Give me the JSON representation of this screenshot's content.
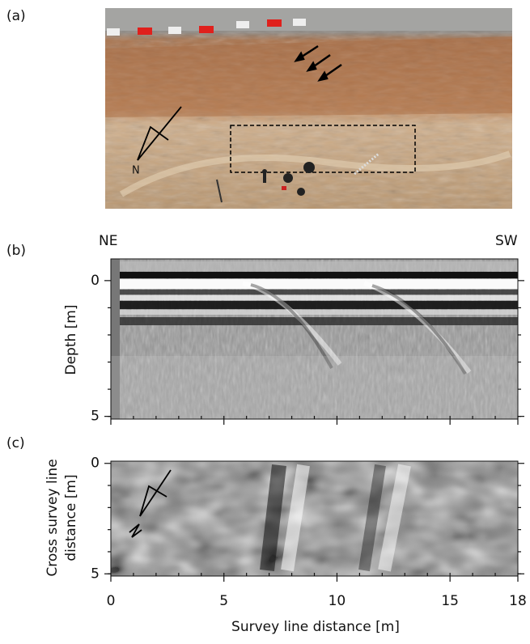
{
  "panels": {
    "a": {
      "label": "(a)",
      "compass": "N"
    },
    "b": {
      "label": "(b)",
      "left": "NE",
      "right": "SW",
      "y_label": "Depth  [m]",
      "ylim": [
        -0.8,
        5.1
      ],
      "yticks": [
        0,
        5
      ]
    },
    "c": {
      "label": "(c)",
      "y_label_lines": [
        "Cross survey line",
        "distance [m]"
      ],
      "ylim": [
        -0.1,
        5.1
      ],
      "yticks": [
        0,
        5
      ]
    },
    "x_axis": {
      "label": "Survey line distance  [m]",
      "xlim": [
        0,
        18
      ],
      "xticks": [
        0,
        5,
        10,
        15,
        18
      ]
    }
  }
}
